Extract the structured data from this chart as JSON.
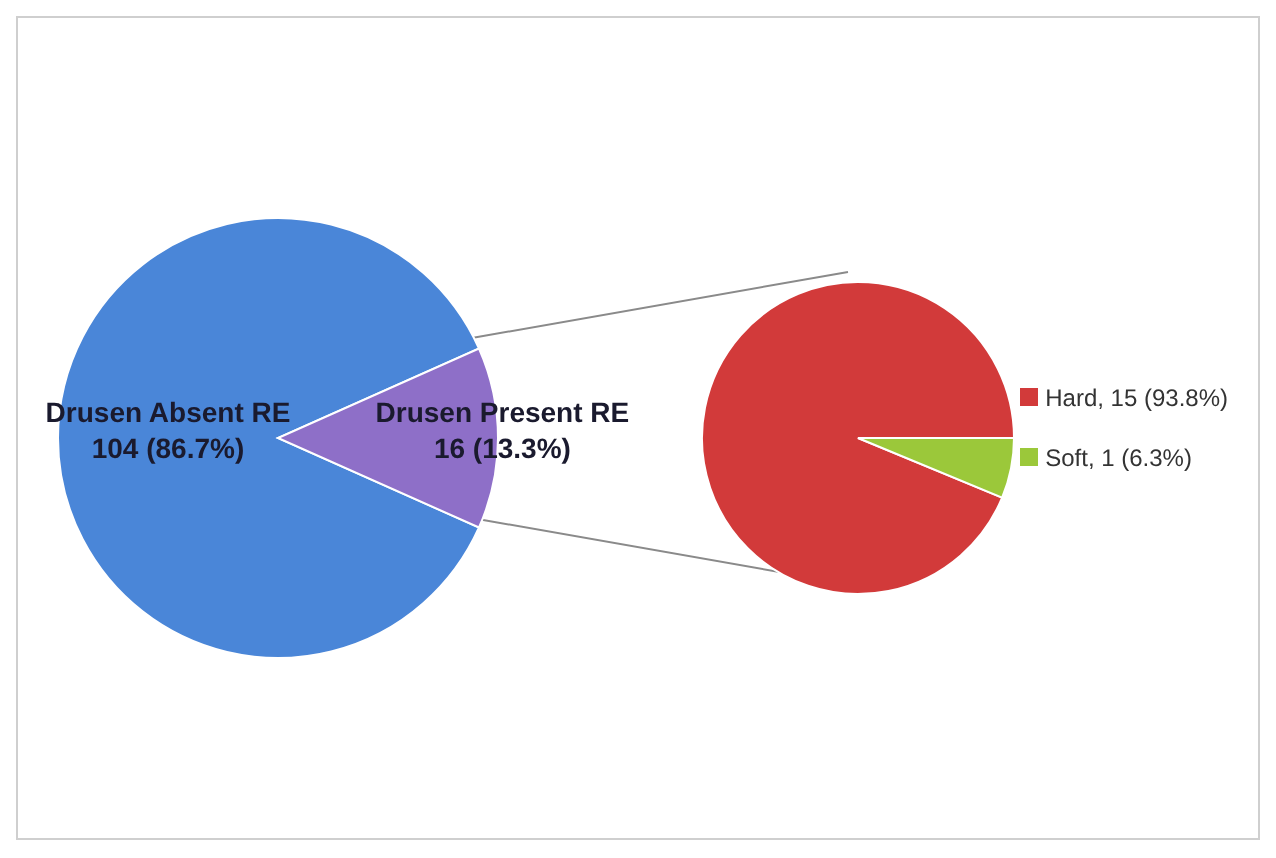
{
  "chart_data": [
    {
      "type": "pie",
      "categories": [
        "Drusen Absent RE",
        "Drusen Present RE"
      ],
      "values": [
        104,
        16
      ],
      "value_labels": [
        "104 (86.7%)",
        "16 (13.3%)"
      ],
      "colors": [
        "#4a86d8",
        "#8e6fc8"
      ],
      "legend": false
    },
    {
      "type": "pie",
      "categories": [
        "Hard",
        "Soft"
      ],
      "values": [
        15,
        1
      ],
      "value_labels": [
        "15 (93.8%)",
        "1 (6.3%)"
      ],
      "colors": [
        "#d23a3a",
        "#9bc83a"
      ],
      "legend": "right"
    }
  ]
}
